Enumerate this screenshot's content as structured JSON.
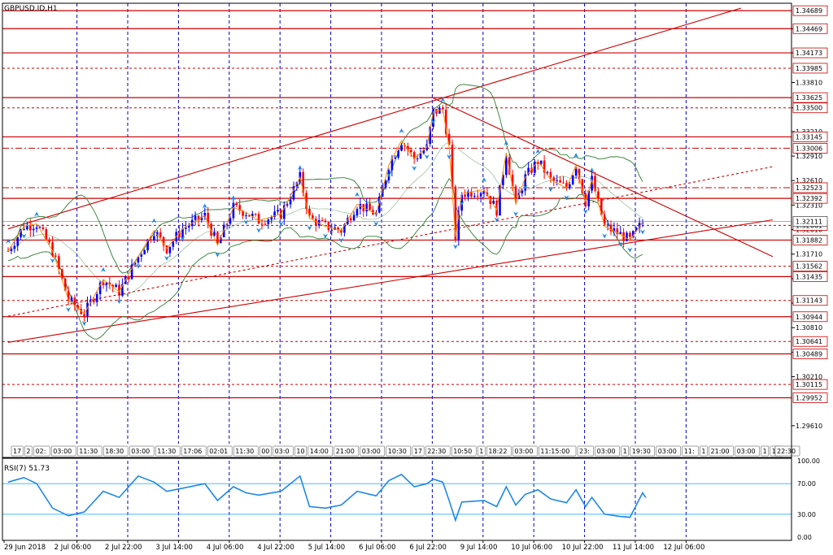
{
  "symbol_label": "GBPUSD.ID,H1",
  "rsi_label": "RSI(7) 51.73",
  "colors": {
    "background": "#ffffff",
    "frame": "#000000",
    "grid": "#0000cc",
    "level": "#cc0000",
    "bull": "#0000ff",
    "bear": "#ff0000",
    "bands": "#2e7d32",
    "zigzag": "#ff8c00",
    "fractal": "#1e88e5",
    "rsi_line": "#1e88e5",
    "rsi_level": "#29b6f6"
  },
  "chart_data": {
    "type": "candlestick",
    "title": "GBPUSD.ID,H1",
    "timeframe": "H1",
    "ylim": [
      1.2945,
      1.3478
    ],
    "y_ticks": [
      "1.34469",
      "1.34173",
      "1.33810",
      "1.33500",
      "1.33210",
      "1.32910",
      "1.32610",
      "1.32310",
      "1.32010",
      "1.31710",
      "1.31410",
      "1.31110",
      "1.30810",
      "1.30510",
      "1.30210",
      "1.29610"
    ],
    "x_ticks": [
      {
        "label": "29 Jun 2018",
        "bar": 0
      },
      {
        "label": "2 Jul 06:00",
        "bar": 14
      },
      {
        "label": "2 Jul 22:00",
        "bar": 30
      },
      {
        "label": "3 Jul 14:00",
        "bar": 46
      },
      {
        "label": "4 Jul 06:00",
        "bar": 62
      },
      {
        "label": "4 Jul 22:00",
        "bar": 78
      },
      {
        "label": "5 Jul 14:00",
        "bar": 94
      },
      {
        "label": "6 Jul 06:00",
        "bar": 110
      },
      {
        "label": "6 Jul 22:00",
        "bar": 126
      },
      {
        "label": "9 Jul 14:00",
        "bar": 142
      },
      {
        "label": "10 Jul 06:00",
        "bar": 158
      },
      {
        "label": "10 Jul 22:00",
        "bar": 174
      },
      {
        "label": "11 Jul 14:00",
        "bar": 190
      },
      {
        "label": "12 Jul 06:00",
        "bar": 206
      }
    ],
    "session_ticks": [
      "17",
      "2",
      "02:",
      "03:00",
      "11:30",
      "18:30",
      "03:00",
      "11:30",
      "17:06",
      "02:01",
      "11:30",
      "00",
      "03:0",
      "10",
      "14:00",
      "21:00",
      "03:00",
      "10:30",
      "17",
      "22:30",
      "10:50",
      "1",
      "18:22",
      "03:00",
      "11:15:00",
      "23:",
      "03:00",
      "1",
      "19:30",
      "03:00",
      "11:",
      "1",
      "21:00",
      "03:00",
      "1",
      "1",
      "2",
      "22:30"
    ],
    "levels": [
      {
        "label": "1.34689",
        "value": 1.34689,
        "style": "solid"
      },
      {
        "label": "1.34469",
        "value": 1.34469,
        "style": "solid"
      },
      {
        "label": "1.34173",
        "value": 1.34173,
        "style": "solid"
      },
      {
        "label": "1.33985",
        "value": 1.33985,
        "style": "dashed"
      },
      {
        "label": "1.33625",
        "value": 1.33625,
        "style": "solid"
      },
      {
        "label": "1.33500",
        "value": 1.335,
        "style": "dashed"
      },
      {
        "label": "1.33145",
        "value": 1.33145,
        "style": "solid"
      },
      {
        "label": "1.33006",
        "value": 1.33006,
        "style": "dashdot"
      },
      {
        "label": "1.32523",
        "value": 1.32523,
        "style": "dashdot"
      },
      {
        "label": "1.32392",
        "value": 1.32392,
        "style": "solid"
      },
      {
        "label": "1.32061",
        "value": 1.32061,
        "style": "dashed"
      },
      {
        "label": "1.31882",
        "value": 1.31882,
        "style": "solid"
      },
      {
        "label": "1.31562",
        "value": 1.31562,
        "style": "dashed"
      },
      {
        "label": "1.31435",
        "value": 1.31435,
        "style": "solid"
      },
      {
        "label": "1.31143",
        "value": 1.31143,
        "style": "dashed"
      },
      {
        "label": "1.30944",
        "value": 1.30944,
        "style": "solid"
      },
      {
        "label": "1.30641",
        "value": 1.30641,
        "style": "dashed"
      },
      {
        "label": "1.30489",
        "value": 1.30489,
        "style": "solid"
      },
      {
        "label": "1.30115",
        "value": 1.30115,
        "style": "dashed"
      },
      {
        "label": "1.29952",
        "value": 1.29952,
        "style": "solid"
      }
    ],
    "current_price": {
      "label": "1.32111",
      "value": 1.32111
    },
    "trendlines": [
      {
        "name": "upper-channel",
        "from": {
          "bar": 0,
          "price": 1.3202
        },
        "to": {
          "bar": 231,
          "price": 1.3472
        },
        "style": "solid"
      },
      {
        "name": "lower-channel",
        "from": {
          "bar": 0,
          "price": 1.3063
        },
        "to": {
          "bar": 241,
          "price": 1.3213
        },
        "style": "solid"
      },
      {
        "name": "mid-channel",
        "from": {
          "bar": 0,
          "price": 1.3095
        },
        "to": {
          "bar": 241,
          "price": 1.3278
        },
        "style": "dashed"
      },
      {
        "name": "descending-resistance",
        "from": {
          "bar": 134,
          "price": 1.3362
        },
        "to": {
          "bar": 241,
          "price": 1.3168
        },
        "style": "solid"
      }
    ],
    "anchors": [
      {
        "bar": 0,
        "price": 1.3175
      },
      {
        "bar": 5,
        "price": 1.3205
      },
      {
        "bar": 9,
        "price": 1.3208
      },
      {
        "bar": 14,
        "price": 1.3175
      },
      {
        "bar": 19,
        "price": 1.3115
      },
      {
        "bar": 24,
        "price": 1.3098
      },
      {
        "bar": 30,
        "price": 1.314
      },
      {
        "bar": 35,
        "price": 1.3125
      },
      {
        "bar": 41,
        "price": 1.3168
      },
      {
        "bar": 46,
        "price": 1.32
      },
      {
        "bar": 50,
        "price": 1.3178
      },
      {
        "bar": 55,
        "price": 1.3202
      },
      {
        "bar": 62,
        "price": 1.3218
      },
      {
        "bar": 66,
        "price": 1.3182
      },
      {
        "bar": 71,
        "price": 1.3228
      },
      {
        "bar": 75,
        "price": 1.3222
      },
      {
        "bar": 79,
        "price": 1.3212
      },
      {
        "bar": 86,
        "price": 1.322
      },
      {
        "bar": 92,
        "price": 1.3265
      },
      {
        "bar": 95,
        "price": 1.3215
      },
      {
        "bar": 100,
        "price": 1.3205
      },
      {
        "bar": 105,
        "price": 1.32
      },
      {
        "bar": 110,
        "price": 1.3232
      },
      {
        "bar": 116,
        "price": 1.322
      },
      {
        "bar": 120,
        "price": 1.328
      },
      {
        "bar": 124,
        "price": 1.331
      },
      {
        "bar": 128,
        "price": 1.3288
      },
      {
        "bar": 132,
        "price": 1.3302
      },
      {
        "bar": 134,
        "price": 1.3345
      },
      {
        "bar": 137,
        "price": 1.3348
      },
      {
        "bar": 139,
        "price": 1.3302
      },
      {
        "bar": 141,
        "price": 1.3192
      },
      {
        "bar": 143,
        "price": 1.3245
      },
      {
        "bar": 150,
        "price": 1.325
      },
      {
        "bar": 154,
        "price": 1.3225
      },
      {
        "bar": 157,
        "price": 1.3295
      },
      {
        "bar": 160,
        "price": 1.3232
      },
      {
        "bar": 163,
        "price": 1.3265
      },
      {
        "bar": 167,
        "price": 1.3285
      },
      {
        "bar": 171,
        "price": 1.3262
      },
      {
        "bar": 176,
        "price": 1.3252
      },
      {
        "bar": 179,
        "price": 1.328
      },
      {
        "bar": 182,
        "price": 1.3235
      },
      {
        "bar": 184,
        "price": 1.3262
      },
      {
        "bar": 188,
        "price": 1.3205
      },
      {
        "bar": 193,
        "price": 1.3195
      },
      {
        "bar": 196,
        "price": 1.3188
      },
      {
        "bar": 200,
        "price": 1.321
      }
    ],
    "rsi": {
      "name": "RSI(7)",
      "last_value": 51.73,
      "ylim": [
        0,
        100
      ],
      "y_ticks": [
        "100.00",
        "70.00",
        "30.00",
        "0.00"
      ],
      "levels": [
        70,
        30
      ],
      "points": [
        {
          "bar": 0,
          "v": 72
        },
        {
          "bar": 5,
          "v": 78
        },
        {
          "bar": 9,
          "v": 70
        },
        {
          "bar": 14,
          "v": 38
        },
        {
          "bar": 19,
          "v": 28
        },
        {
          "bar": 24,
          "v": 33
        },
        {
          "bar": 30,
          "v": 60
        },
        {
          "bar": 35,
          "v": 52
        },
        {
          "bar": 41,
          "v": 80
        },
        {
          "bar": 46,
          "v": 72
        },
        {
          "bar": 50,
          "v": 60
        },
        {
          "bar": 55,
          "v": 64
        },
        {
          "bar": 62,
          "v": 70
        },
        {
          "bar": 66,
          "v": 48
        },
        {
          "bar": 71,
          "v": 66
        },
        {
          "bar": 75,
          "v": 58
        },
        {
          "bar": 79,
          "v": 55
        },
        {
          "bar": 86,
          "v": 60
        },
        {
          "bar": 92,
          "v": 80
        },
        {
          "bar": 95,
          "v": 40
        },
        {
          "bar": 100,
          "v": 38
        },
        {
          "bar": 105,
          "v": 42
        },
        {
          "bar": 110,
          "v": 60
        },
        {
          "bar": 116,
          "v": 54
        },
        {
          "bar": 120,
          "v": 74
        },
        {
          "bar": 124,
          "v": 82
        },
        {
          "bar": 128,
          "v": 66
        },
        {
          "bar": 132,
          "v": 70
        },
        {
          "bar": 134,
          "v": 76
        },
        {
          "bar": 137,
          "v": 72
        },
        {
          "bar": 139,
          "v": 48
        },
        {
          "bar": 141,
          "v": 22
        },
        {
          "bar": 143,
          "v": 46
        },
        {
          "bar": 150,
          "v": 48
        },
        {
          "bar": 154,
          "v": 40
        },
        {
          "bar": 157,
          "v": 66
        },
        {
          "bar": 160,
          "v": 42
        },
        {
          "bar": 163,
          "v": 56
        },
        {
          "bar": 167,
          "v": 62
        },
        {
          "bar": 171,
          "v": 50
        },
        {
          "bar": 176,
          "v": 45
        },
        {
          "bar": 179,
          "v": 62
        },
        {
          "bar": 182,
          "v": 40
        },
        {
          "bar": 184,
          "v": 52
        },
        {
          "bar": 188,
          "v": 30
        },
        {
          "bar": 193,
          "v": 27
        },
        {
          "bar": 196,
          "v": 26
        },
        {
          "bar": 200,
          "v": 58
        },
        {
          "bar": 201,
          "v": 51.73
        }
      ]
    }
  }
}
